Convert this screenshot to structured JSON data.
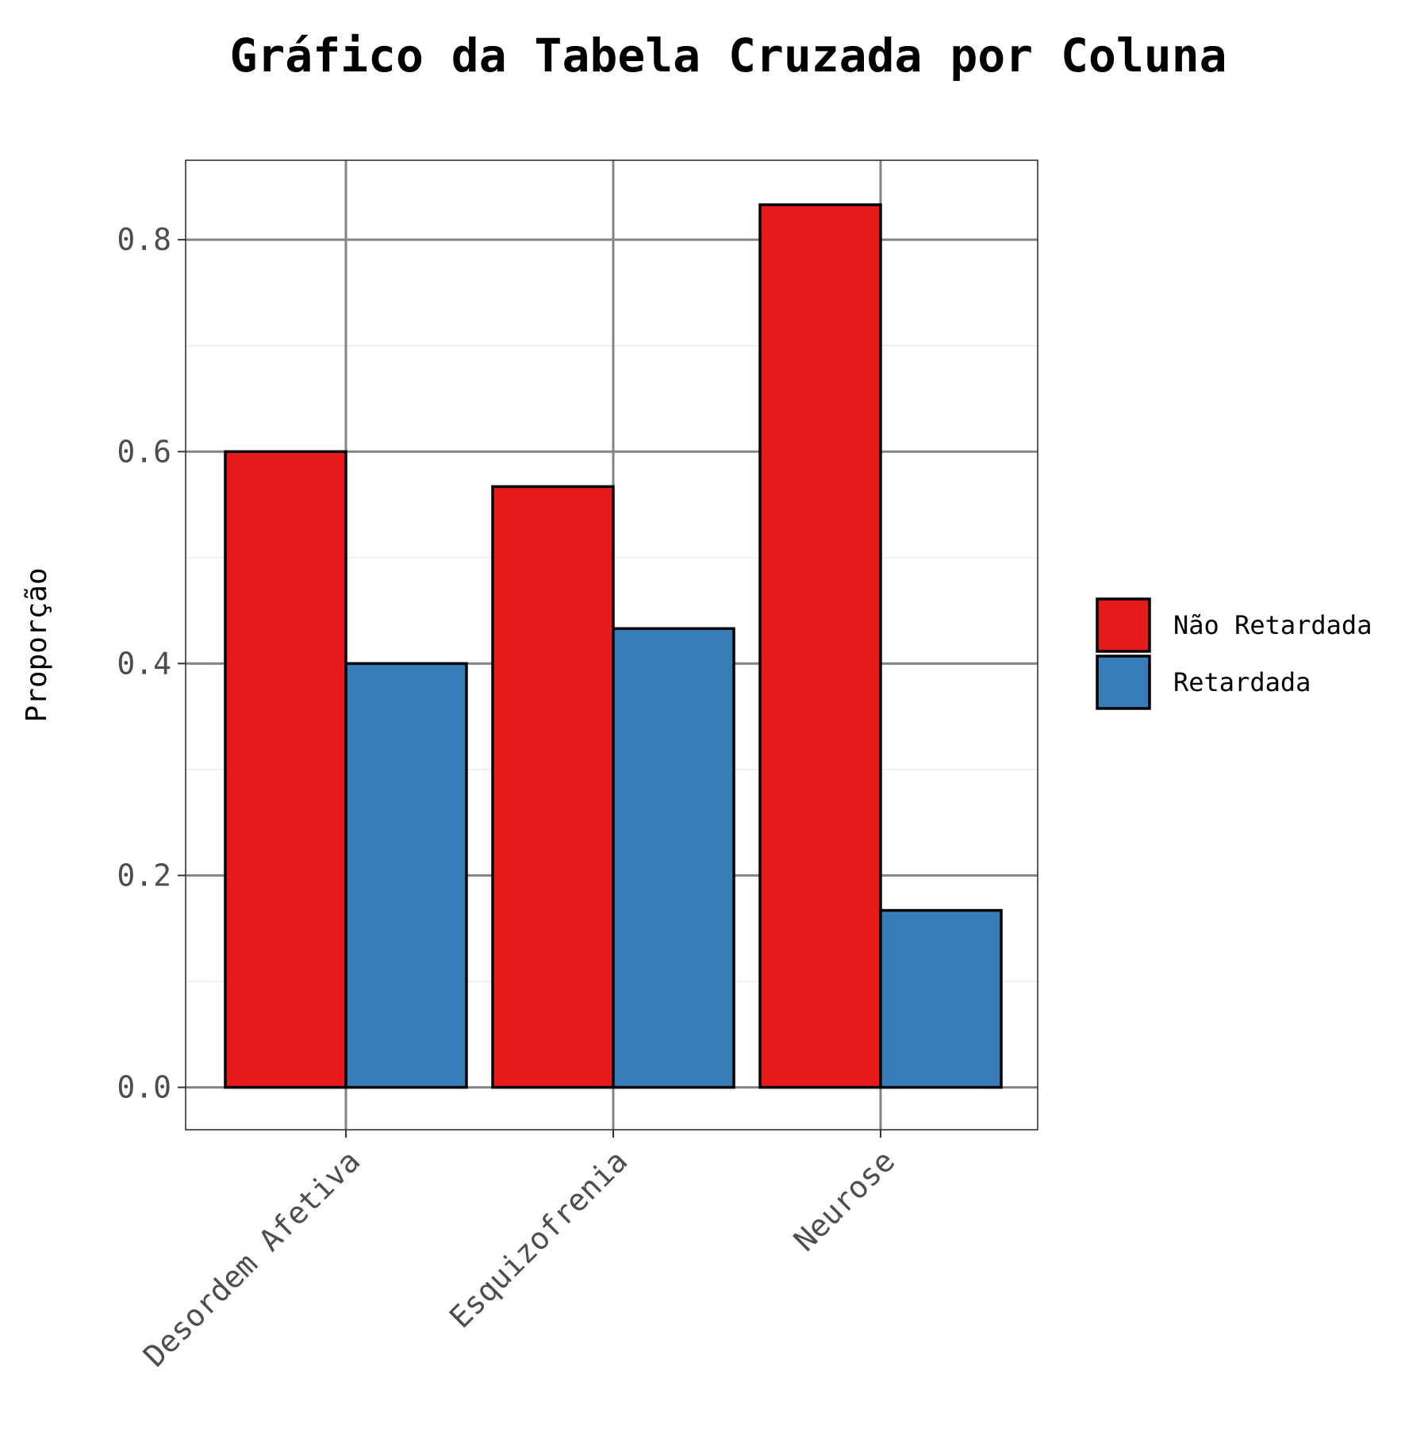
{
  "chart_data": {
    "type": "bar",
    "title": "Gráfico da Tabela Cruzada por Coluna",
    "xlabel": "",
    "ylabel": "Proporção",
    "categories": [
      "Desordem Afetiva",
      "Esquizofrenia",
      "Neurose"
    ],
    "series": [
      {
        "name": "Não Retardada",
        "color": "#E41A1C",
        "values": [
          0.6,
          0.567,
          0.833
        ]
      },
      {
        "name": "Retardada",
        "color": "#377EB8",
        "values": [
          0.4,
          0.433,
          0.167
        ]
      }
    ],
    "ylim": [
      -0.04,
      0.875
    ],
    "yticks": [
      0.0,
      0.2,
      0.4,
      0.6,
      0.8
    ],
    "ytick_labels": [
      "0.0",
      "0.2",
      "0.4",
      "0.6",
      "0.8"
    ],
    "grid": true,
    "legend_position": "right"
  }
}
